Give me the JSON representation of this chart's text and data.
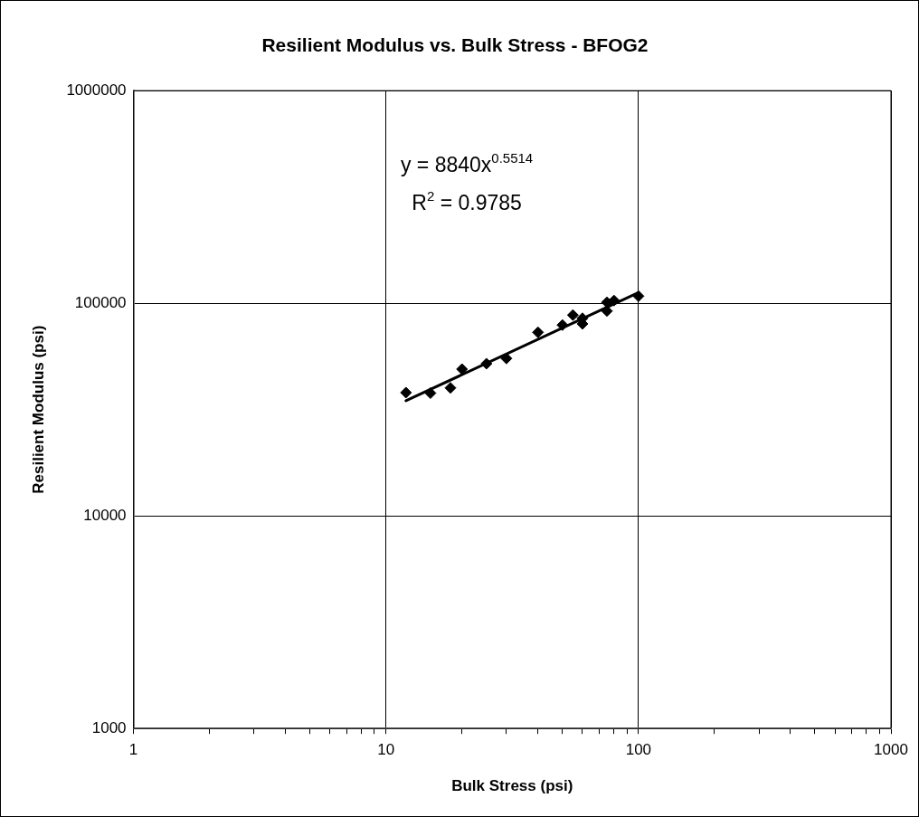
{
  "chart_data": {
    "type": "scatter",
    "title": "Resilient Modulus vs. Bulk Stress - BFOG2",
    "xlabel": "Bulk Stress (psi)",
    "ylabel": "Resilient Modulus (psi)",
    "log": "xy",
    "grid": true,
    "legend": false,
    "xlim": [
      1,
      1000
    ],
    "ylim": [
      1000,
      1000000
    ],
    "xticks": [
      1,
      {
        "value": 2,
        "label": null
      },
      {
        "value": 3,
        "label": null
      },
      {
        "value": 4,
        "label": null
      },
      {
        "value": 5,
        "label": null
      },
      {
        "value": 6,
        "label": null
      },
      {
        "value": 7,
        "label": null
      },
      {
        "value": 8,
        "label": null
      },
      {
        "value": 9,
        "label": null
      },
      10,
      {
        "value": 20,
        "label": null
      },
      {
        "value": 30,
        "label": null
      },
      {
        "value": 40,
        "label": null
      },
      {
        "value": 50,
        "label": null
      },
      {
        "value": 60,
        "label": null
      },
      {
        "value": 70,
        "label": null
      },
      {
        "value": 80,
        "label": null
      },
      {
        "value": 90,
        "label": null
      },
      100,
      {
        "value": 200,
        "label": null
      },
      {
        "value": 300,
        "label": null
      },
      {
        "value": 400,
        "label": null
      },
      {
        "value": 500,
        "label": null
      },
      {
        "value": 600,
        "label": null
      },
      {
        "value": 700,
        "label": null
      },
      {
        "value": 800,
        "label": null
      },
      {
        "value": 900,
        "label": null
      },
      1000
    ],
    "yticks": [
      1000,
      10000,
      100000,
      1000000
    ],
    "annotations": [
      "y = 8840x$^{0.5514}$",
      "R$^{2}$ = 0.9785"
    ],
    "series": [
      {
        "color": "#000000",
        "marker": "diamond",
        "x": [
          12,
          15,
          18,
          20,
          25,
          30,
          40,
          50,
          55,
          60,
          60,
          75,
          75,
          80,
          100
        ],
        "values": [
          38000,
          37800,
          40000,
          49000,
          52000,
          55000,
          73000,
          79000,
          88000,
          80000,
          85000,
          92000,
          101000,
          103000,
          108000
        ]
      },
      {
        "type": "line",
        "color": "#000000",
        "marker": "none",
        "line_style": "solid",
        "x": [
          12,
          100
        ],
        "values": [
          34800,
          112200
        ]
      }
    ]
  }
}
